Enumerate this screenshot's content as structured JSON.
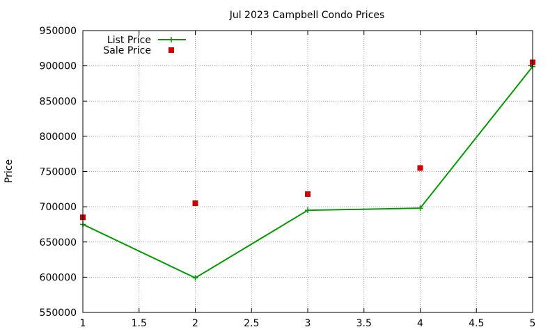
{
  "chart_data": {
    "type": "line",
    "title": "Jul 2023 Campbell Condo Prices",
    "xlabel": "",
    "ylabel": "Price",
    "xlim": [
      1,
      5
    ],
    "ylim": [
      550000,
      950000
    ],
    "xticks": [
      1,
      1.5,
      2,
      2.5,
      3,
      3.5,
      4,
      4.5,
      5
    ],
    "xtick_labels": [
      "1",
      "1.5",
      "2",
      "2.5",
      "3",
      "3.5",
      "4",
      "4.5",
      "5"
    ],
    "yticks": [
      550000,
      600000,
      650000,
      700000,
      750000,
      800000,
      850000,
      900000,
      950000
    ],
    "ytick_labels": [
      "550000",
      "600000",
      "650000",
      "700000",
      "750000",
      "800000",
      "850000",
      "900000",
      "950000"
    ],
    "grid": true,
    "legend_position": "top-left",
    "series": [
      {
        "name": "List Price",
        "style": "linespoints",
        "marker": "plus",
        "color": "#009900",
        "x": [
          1,
          2,
          3,
          4,
          5
        ],
        "y": [
          675000,
          599000,
          695000,
          698000,
          899000
        ]
      },
      {
        "name": "Sale Price",
        "style": "points",
        "marker": "square",
        "color": "#cc0000",
        "x": [
          1,
          2,
          3,
          4,
          5
        ],
        "y": [
          685000,
          705000,
          718000,
          755000,
          905000
        ]
      }
    ]
  }
}
